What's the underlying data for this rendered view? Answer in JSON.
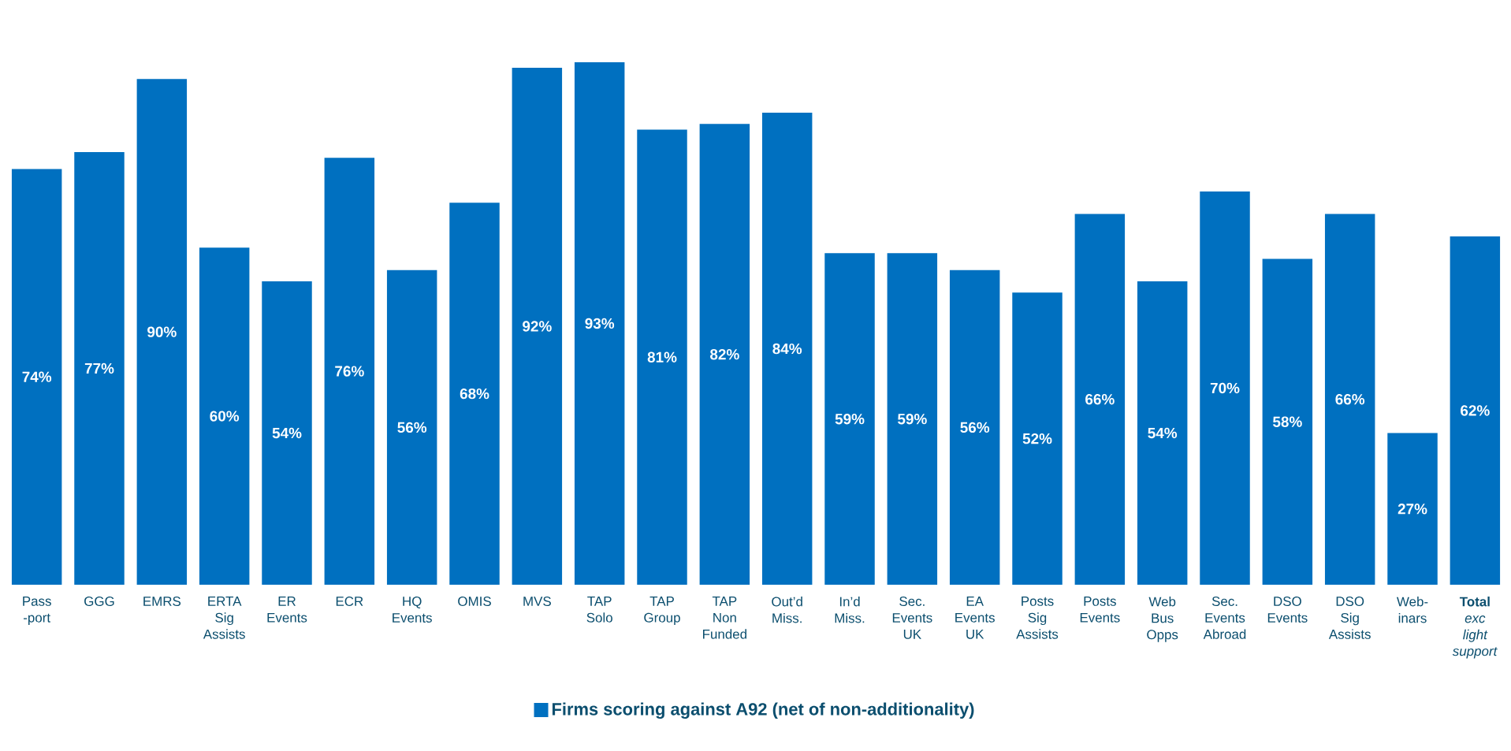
{
  "chart_data": {
    "type": "bar",
    "categories": [
      "Pass -port",
      "GGG",
      "EMRS",
      "ERTA Sig Assists",
      "ER Events",
      "ECR",
      "HQ Events",
      "OMIS",
      "MVS",
      "TAP Solo",
      "TAP Group",
      "TAP Non Funded",
      "Out’d Miss.",
      "In’d Miss.",
      "Sec. Events UK",
      "EA Events UK",
      "Posts Sig Assists",
      "Posts Events",
      "Web Bus Opps",
      "Sec. Events Abroad",
      "DSO Events",
      "DSO Sig Assists",
      "Web-inars",
      "**Total** *exc light support*"
    ],
    "series": [
      {
        "name": "Firms scoring against A92 (net of non-additionality)",
        "color": "#0070c0",
        "values": [
          74,
          77,
          90,
          60,
          54,
          76,
          56,
          68,
          92,
          93,
          81,
          82,
          84,
          59,
          59,
          56,
          52,
          66,
          54,
          70,
          58,
          66,
          27,
          62
        ],
        "value_labels": [
          "74%",
          "77%",
          "90%",
          "60%",
          "54%",
          "76%",
          "56%",
          "68%",
          "92%",
          "93%",
          "81%",
          "82%",
          "84%",
          "59%",
          "59%",
          "56%",
          "52%",
          "66%",
          "54%",
          "70%",
          "58%",
          "66%",
          "27%",
          "62%"
        ]
      }
    ],
    "legend": "bottom"
  }
}
